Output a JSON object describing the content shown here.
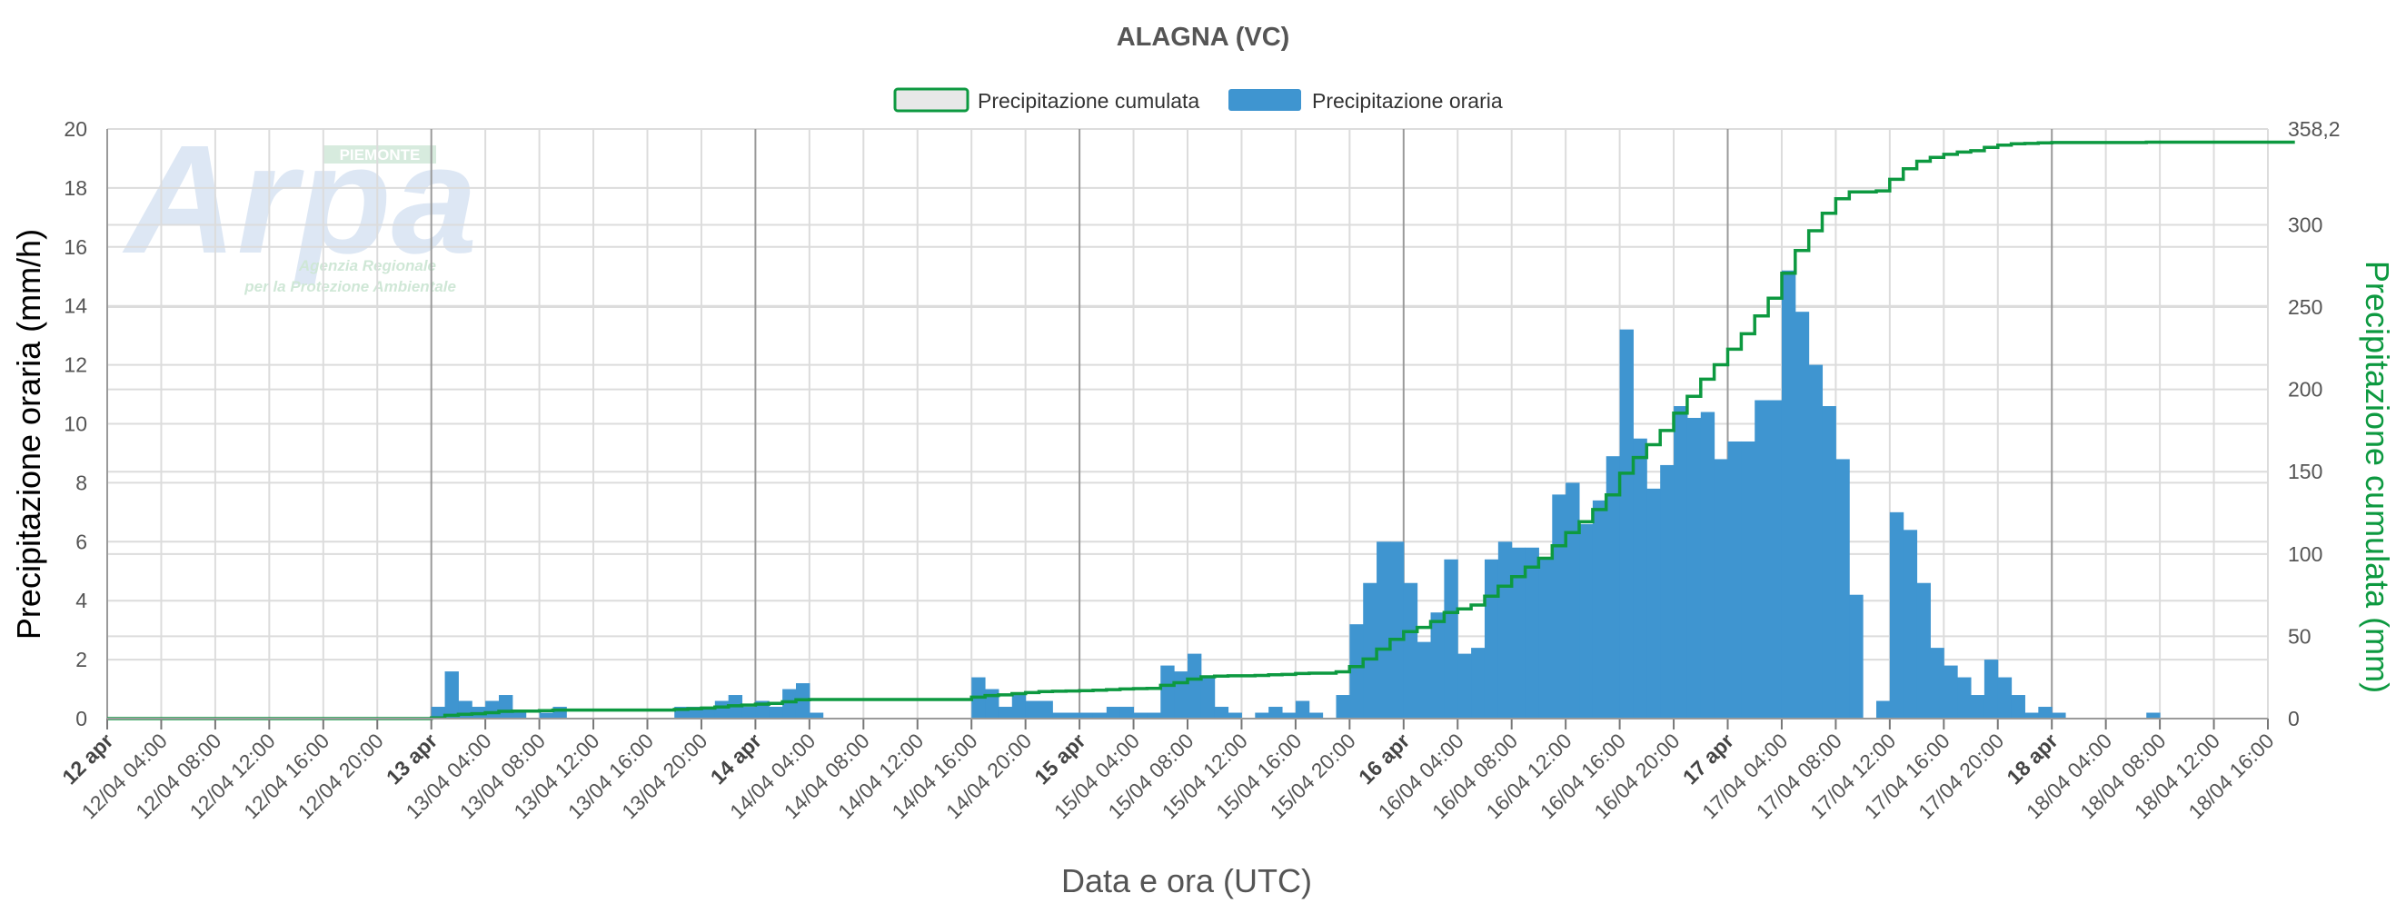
{
  "colors": {
    "bar": "#3f95d0",
    "line": "#0d9940",
    "grid": "#dcdcdc",
    "day_line": "#9a9a9a",
    "text": "#555555",
    "title": "#555555",
    "watermark": "#c3d5ec"
  },
  "logo": {
    "name": "Arpa",
    "badge": "PIEMONTE",
    "line1": "Agenzia Regionale",
    "line2": "per la Protezione Ambientale"
  },
  "chart_data": {
    "type": "bar",
    "title": "ALAGNA (VC)",
    "xlabel": "Data e ora (UTC)",
    "ylabel_left": "Precipitazione oraria (mm/h)",
    "ylabel_right": "Precipitazione cumulata (mm)",
    "legend": {
      "position": "top-center",
      "items": [
        {
          "name": "Precipitazione cumulata",
          "icon": "outlined-green-box"
        },
        {
          "name": "Precipitazione oraria",
          "icon": "blue-box"
        }
      ]
    },
    "ylim_left": [
      0,
      20
    ],
    "yticks_left": [
      "0",
      "2",
      "4",
      "6",
      "8",
      "10",
      "12",
      "14",
      "16",
      "18",
      "20"
    ],
    "ylim_right": [
      0,
      358.2
    ],
    "yticks_right": [
      "0",
      "50",
      "100",
      "150",
      "200",
      "250",
      "300",
      "358,2"
    ],
    "ytick_values_right": [
      0,
      50,
      100,
      150,
      200,
      250,
      300,
      358.2
    ],
    "x_start": "12/04 00:00",
    "x_end": "18/04 16:00",
    "x_hours_total": 160,
    "xtick_step_hours": 4,
    "xtick_labels": [
      "12 apr",
      "12/04 04:00",
      "12/04 08:00",
      "12/04 12:00",
      "12/04 16:00",
      "12/04 20:00",
      "13 apr",
      "13/04 04:00",
      "13/04 08:00",
      "13/04 12:00",
      "13/04 16:00",
      "13/04 20:00",
      "14 apr",
      "14/04 04:00",
      "14/04 08:00",
      "14/04 12:00",
      "14/04 16:00",
      "14/04 20:00",
      "15 apr",
      "15/04 04:00",
      "15/04 08:00",
      "15/04 12:00",
      "15/04 16:00",
      "15/04 20:00",
      "16 apr",
      "16/04 04:00",
      "16/04 08:00",
      "16/04 12:00",
      "16/04 16:00",
      "16/04 20:00",
      "17 apr",
      "17/04 04:00",
      "17/04 08:00",
      "17/04 12:00",
      "17/04 16:00",
      "17/04 20:00",
      "18 apr",
      "18/04 04:00",
      "18/04 08:00",
      "18/04 12:00",
      "18/04 16:00"
    ],
    "grid": true,
    "series": [
      {
        "name": "Precipitazione oraria",
        "type": "bar",
        "axis": "left",
        "start_hour": 0,
        "values": [
          0,
          0,
          0,
          0,
          0,
          0,
          0,
          0,
          0,
          0,
          0,
          0,
          0,
          0,
          0,
          0,
          0,
          0,
          0,
          0,
          0,
          0,
          0,
          0,
          0.4,
          1.6,
          0.6,
          0.4,
          0.6,
          0.8,
          0.2,
          0,
          0.2,
          0.4,
          0,
          0,
          0,
          0,
          0,
          0,
          0,
          0,
          0.4,
          0.4,
          0.4,
          0.6,
          0.8,
          0.4,
          0.6,
          0.4,
          1.0,
          1.2,
          0.2,
          0,
          0,
          0,
          0,
          0,
          0,
          0,
          0,
          0,
          0,
          0,
          1.4,
          1.0,
          0.4,
          0.8,
          0.6,
          0.6,
          0.2,
          0.2,
          0.2,
          0.2,
          0.4,
          0.4,
          0.2,
          0.2,
          1.8,
          1.6,
          2.2,
          1.4,
          0.4,
          0.2,
          0,
          0.2,
          0.4,
          0.2,
          0.6,
          0.2,
          0,
          0.8,
          3.2,
          4.6,
          6.0,
          6.0,
          4.6,
          2.6,
          3.6,
          5.4,
          2.2,
          2.4,
          5.4,
          6.0,
          5.8,
          5.8,
          5.4,
          7.6,
          8.0,
          6.6,
          7.4,
          8.9,
          13.2,
          9.5,
          7.8,
          8.6,
          10.6,
          10.2,
          10.4,
          8.8,
          9.4,
          9.4,
          10.8,
          10.8,
          15.2,
          13.8,
          12.0,
          10.6,
          8.8,
          4.2,
          0,
          0.6,
          7.0,
          6.4,
          4.6,
          2.4,
          1.8,
          1.4,
          0.8,
          2.0,
          1.4,
          0.8,
          0.2,
          0.4,
          0.2,
          0,
          0,
          0,
          0,
          0,
          0,
          0.2,
          0,
          0,
          0,
          0,
          0,
          0,
          0,
          0,
          0,
          0
        ]
      },
      {
        "name": "Precipitazione cumulata",
        "type": "line-step",
        "axis": "right",
        "start_hour": 0,
        "values": [
          0,
          0,
          0,
          0,
          0,
          0,
          0,
          0,
          0,
          0,
          0,
          0,
          0,
          0,
          0,
          0,
          0,
          0,
          0,
          0,
          0,
          0,
          0,
          0,
          0.4,
          2.0,
          2.6,
          3.0,
          3.6,
          4.4,
          4.6,
          4.6,
          4.8,
          5.2,
          5.2,
          5.2,
          5.2,
          5.2,
          5.2,
          5.2,
          5.2,
          5.2,
          5.6,
          6.0,
          6.4,
          7.0,
          7.8,
          8.2,
          8.8,
          9.2,
          10.2,
          11.4,
          11.6,
          11.6,
          11.6,
          11.6,
          11.6,
          11.6,
          11.6,
          11.6,
          11.6,
          11.6,
          11.6,
          11.6,
          13.0,
          14.0,
          14.4,
          15.2,
          15.8,
          16.4,
          16.6,
          16.8,
          17.0,
          17.2,
          17.6,
          18.0,
          18.2,
          18.4,
          20.2,
          21.8,
          24.0,
          25.4,
          25.8,
          26.0,
          26.0,
          26.2,
          26.6,
          26.8,
          27.4,
          27.6,
          27.6,
          28.4,
          31.6,
          36.2,
          42.2,
          48.2,
          52.8,
          55.4,
          59.0,
          64.4,
          66.6,
          69.0,
          74.4,
          80.4,
          86.2,
          92.0,
          97.4,
          105.0,
          113.0,
          119.6,
          127.0,
          135.9,
          149.1,
          158.6,
          166.4,
          175.0,
          185.6,
          195.8,
          206.2,
          215.0,
          224.4,
          233.8,
          244.6,
          255.4,
          270.6,
          284.4,
          296.4,
          307.0,
          315.8,
          320.0,
          320.0,
          320.6,
          327.6,
          334.0,
          338.6,
          341.0,
          342.8,
          344.2,
          345.0,
          347.0,
          348.4,
          349.2,
          349.4,
          349.8,
          350.0,
          350.0,
          350.0,
          350.0,
          350.0,
          350.0,
          350.0,
          350.2,
          350.2,
          350.2,
          350.2,
          350.2,
          350.2,
          350.2,
          350.2,
          350.2,
          350.2,
          350.2
        ]
      }
    ]
  }
}
